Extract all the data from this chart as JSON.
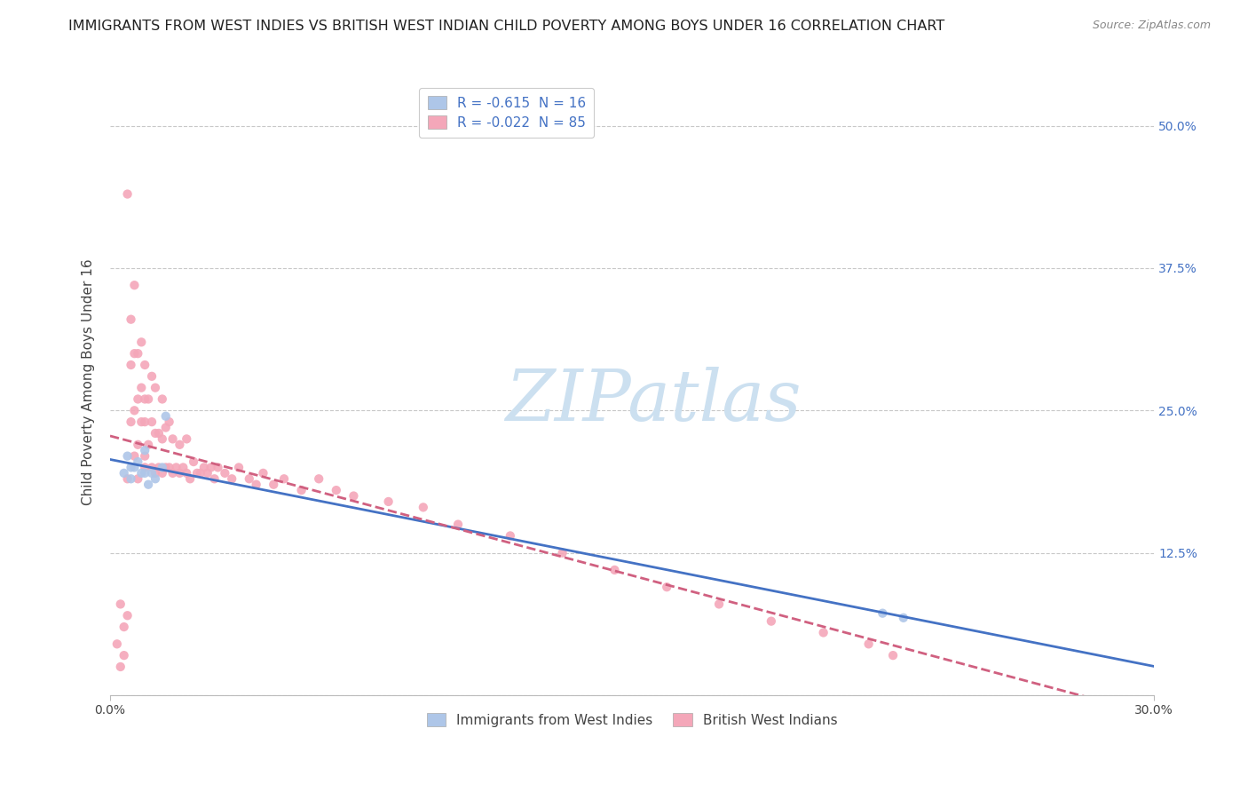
{
  "title": "IMMIGRANTS FROM WEST INDIES VS BRITISH WEST INDIAN CHILD POVERTY AMONG BOYS UNDER 16 CORRELATION CHART",
  "source": "Source: ZipAtlas.com",
  "ylabel": "Child Poverty Among Boys Under 16",
  "xlim": [
    0.0,
    0.3
  ],
  "ylim": [
    0.0,
    0.55
  ],
  "xtick_positions": [
    0.0,
    0.3
  ],
  "xticklabels": [
    "0.0%",
    "30.0%"
  ],
  "ytick_positions": [
    0.0,
    0.125,
    0.25,
    0.375,
    0.5
  ],
  "ytick_labels": [
    "",
    "12.5%",
    "25.0%",
    "37.5%",
    "50.0%"
  ],
  "grid_color": "#c8c8c8",
  "background_color": "#ffffff",
  "series1_name": "Immigrants from West Indies",
  "series1_color": "#aec6e8",
  "series1_line_color": "#4472c4",
  "series1_R": "-0.615",
  "series1_N": "16",
  "series2_name": "British West Indians",
  "series2_color": "#f4a7b9",
  "series2_line_color": "#d06080",
  "series2_R": "-0.022",
  "series2_N": "85",
  "watermark_text": "ZIPatlas",
  "watermark_color": "#cce0f0",
  "series1_x": [
    0.004,
    0.005,
    0.006,
    0.006,
    0.007,
    0.008,
    0.009,
    0.01,
    0.01,
    0.011,
    0.012,
    0.013,
    0.015,
    0.016,
    0.222,
    0.228
  ],
  "series1_y": [
    0.195,
    0.21,
    0.19,
    0.2,
    0.2,
    0.205,
    0.195,
    0.195,
    0.215,
    0.185,
    0.195,
    0.19,
    0.2,
    0.245,
    0.072,
    0.068
  ],
  "series2_x": [
    0.002,
    0.003,
    0.003,
    0.004,
    0.004,
    0.005,
    0.005,
    0.005,
    0.006,
    0.006,
    0.006,
    0.007,
    0.007,
    0.007,
    0.007,
    0.008,
    0.008,
    0.008,
    0.008,
    0.009,
    0.009,
    0.009,
    0.01,
    0.01,
    0.01,
    0.01,
    0.01,
    0.011,
    0.011,
    0.012,
    0.012,
    0.012,
    0.013,
    0.013,
    0.013,
    0.014,
    0.014,
    0.015,
    0.015,
    0.015,
    0.016,
    0.016,
    0.017,
    0.017,
    0.018,
    0.018,
    0.019,
    0.02,
    0.02,
    0.021,
    0.022,
    0.022,
    0.023,
    0.024,
    0.025,
    0.026,
    0.027,
    0.028,
    0.029,
    0.03,
    0.031,
    0.033,
    0.035,
    0.037,
    0.04,
    0.042,
    0.044,
    0.047,
    0.05,
    0.055,
    0.06,
    0.065,
    0.07,
    0.08,
    0.09,
    0.1,
    0.115,
    0.13,
    0.145,
    0.16,
    0.175,
    0.19,
    0.205,
    0.218,
    0.225
  ],
  "series2_y": [
    0.045,
    0.08,
    0.025,
    0.06,
    0.035,
    0.44,
    0.19,
    0.07,
    0.29,
    0.24,
    0.33,
    0.25,
    0.21,
    0.3,
    0.36,
    0.26,
    0.3,
    0.22,
    0.19,
    0.27,
    0.24,
    0.31,
    0.21,
    0.26,
    0.24,
    0.29,
    0.2,
    0.22,
    0.26,
    0.2,
    0.24,
    0.28,
    0.195,
    0.23,
    0.27,
    0.2,
    0.23,
    0.195,
    0.225,
    0.26,
    0.2,
    0.235,
    0.2,
    0.24,
    0.195,
    0.225,
    0.2,
    0.195,
    0.22,
    0.2,
    0.195,
    0.225,
    0.19,
    0.205,
    0.195,
    0.195,
    0.2,
    0.195,
    0.2,
    0.19,
    0.2,
    0.195,
    0.19,
    0.2,
    0.19,
    0.185,
    0.195,
    0.185,
    0.19,
    0.18,
    0.19,
    0.18,
    0.175,
    0.17,
    0.165,
    0.15,
    0.14,
    0.125,
    0.11,
    0.095,
    0.08,
    0.065,
    0.055,
    0.045,
    0.035
  ],
  "title_fontsize": 11.5,
  "source_fontsize": 9,
  "axis_label_fontsize": 11,
  "tick_fontsize": 10,
  "legend_fontsize": 11,
  "scatter_size": 55,
  "line_width": 2.0
}
